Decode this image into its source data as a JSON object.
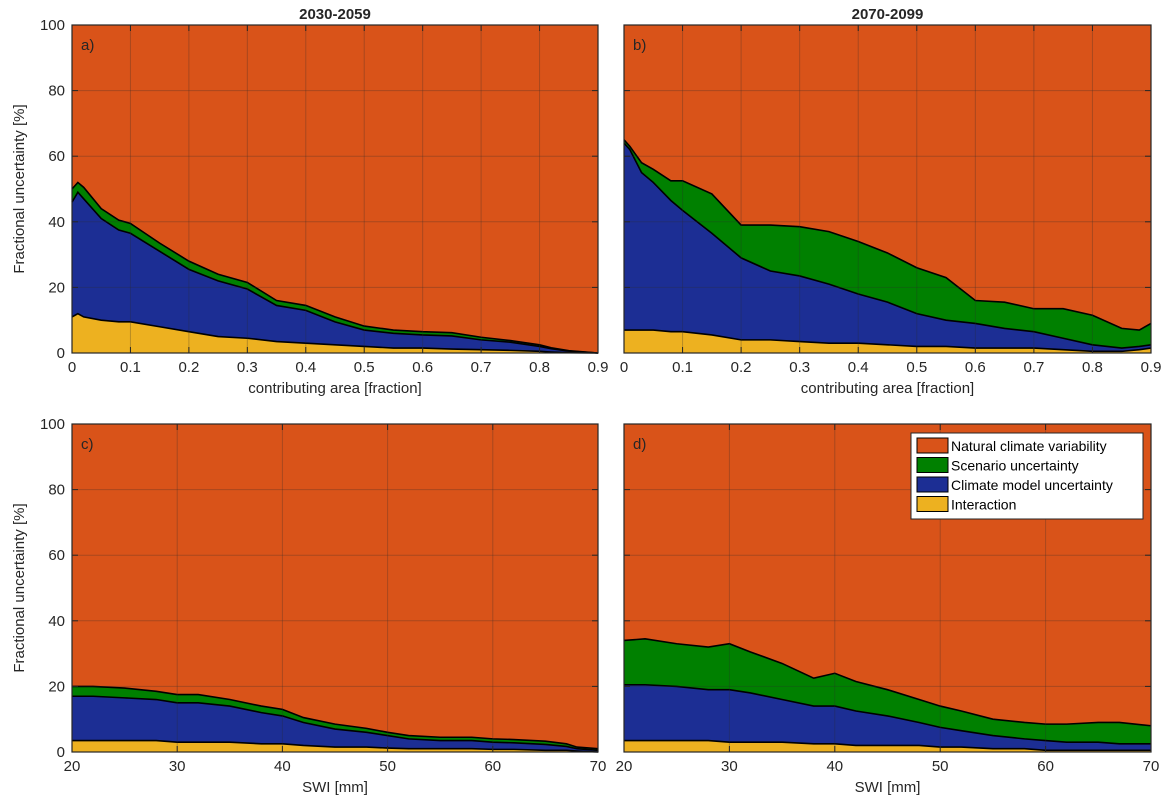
{
  "colors": {
    "natural": "#D95319",
    "scenario": "#008000",
    "model": "#1C2E94",
    "interaction": "#EDB120",
    "grid": "#2a2a2a",
    "axis": "#262626"
  },
  "legend": {
    "placement": "top-right of panel d",
    "items": [
      {
        "label": "Natural climate variability",
        "color": "#D95319"
      },
      {
        "label": "Scenario uncertainty",
        "color": "#008000"
      },
      {
        "label": "Climate model uncertainty",
        "color": "#1C2E94"
      },
      {
        "label": "Interaction",
        "color": "#EDB120"
      }
    ]
  },
  "chart_data": [
    {
      "type": "area",
      "panel": "a)",
      "title": "2030-2059",
      "xlabel": "contributing area [fraction]",
      "ylabel": "Fractional uncertainty [%]",
      "xlim": [
        0,
        0.9
      ],
      "ylim": [
        0,
        100
      ],
      "xticks": [
        "0",
        "0.1",
        "0.2",
        "0.3",
        "0.4",
        "0.5",
        "0.6",
        "0.7",
        "0.8",
        "0.9"
      ],
      "yticks": [
        "0",
        "20",
        "40",
        "60",
        "80",
        "100"
      ],
      "grid": true,
      "x": [
        0,
        0.01,
        0.02,
        0.05,
        0.08,
        0.1,
        0.15,
        0.2,
        0.25,
        0.3,
        0.35,
        0.4,
        0.45,
        0.5,
        0.55,
        0.6,
        0.65,
        0.7,
        0.75,
        0.8,
        0.82,
        0.85,
        0.9
      ],
      "series": [
        {
          "name": "Interaction",
          "values": [
            11,
            12,
            11,
            10,
            9.5,
            9.5,
            8,
            6.5,
            5,
            4.5,
            3.5,
            3,
            2.5,
            2,
            1.5,
            1.5,
            1.2,
            1,
            0.8,
            0.5,
            0.3,
            0.1,
            0
          ]
        },
        {
          "name": "Climate model uncertainty",
          "values": [
            35,
            37,
            36,
            31,
            28,
            27,
            23,
            19,
            17,
            15,
            11,
            10,
            7,
            5,
            4.5,
            4,
            4,
            3,
            2.5,
            1.5,
            1,
            0.5,
            0
          ]
        },
        {
          "name": "Scenario uncertainty",
          "values": [
            4,
            3,
            3.5,
            3,
            3,
            3,
            2.5,
            2.5,
            2,
            2,
            1.5,
            1.5,
            1.5,
            1.2,
            1,
            1,
            1,
            0.8,
            0.5,
            0.5,
            0.3,
            0.1,
            0
          ]
        },
        {
          "name": "Natural climate variability",
          "values": [
            50,
            48,
            49.5,
            56,
            59.5,
            60.5,
            66.5,
            72,
            76,
            78.5,
            84,
            85.5,
            89,
            91.8,
            93,
            93.5,
            93.8,
            95.2,
            96.2,
            97.5,
            98.4,
            99.3,
            100
          ]
        }
      ]
    },
    {
      "type": "area",
      "panel": "b)",
      "title": "2070-2099",
      "xlabel": "contributing area [fraction]",
      "ylabel": "",
      "xlim": [
        0,
        0.9
      ],
      "ylim": [
        0,
        100
      ],
      "xticks": [
        "0",
        "0.1",
        "0.2",
        "0.3",
        "0.4",
        "0.5",
        "0.6",
        "0.7",
        "0.8",
        "0.9"
      ],
      "yticks": [],
      "grid": true,
      "x": [
        0,
        0.01,
        0.03,
        0.05,
        0.08,
        0.1,
        0.15,
        0.2,
        0.25,
        0.3,
        0.35,
        0.4,
        0.45,
        0.5,
        0.55,
        0.6,
        0.65,
        0.7,
        0.75,
        0.8,
        0.85,
        0.88,
        0.9
      ],
      "series": [
        {
          "name": "Interaction",
          "values": [
            7,
            7,
            7,
            7,
            6.5,
            6.5,
            5.5,
            4,
            4,
            3.5,
            3,
            3,
            2.5,
            2,
            2,
            1.5,
            1.5,
            1.5,
            1,
            0.5,
            0.5,
            1,
            1.5
          ]
        },
        {
          "name": "Climate model uncertainty",
          "values": [
            57,
            55,
            48,
            45,
            40,
            37,
            31,
            25,
            21,
            20,
            18,
            15,
            13,
            10,
            8,
            7.5,
            6,
            5,
            3.5,
            2,
            1,
            1,
            1
          ]
        },
        {
          "name": "Scenario uncertainty",
          "values": [
            1,
            1,
            3,
            4,
            6,
            9,
            12,
            10,
            14,
            15,
            16,
            16,
            15,
            14,
            13,
            7,
            8,
            7,
            9,
            9,
            6,
            5,
            6.5
          ]
        },
        {
          "name": "Natural climate variability",
          "values": [
            35,
            37,
            42,
            44,
            47.5,
            47.5,
            51.5,
            61,
            61,
            61.5,
            63,
            66,
            69.5,
            74,
            77,
            84,
            84.5,
            86.5,
            86.5,
            88.5,
            92.5,
            93,
            91
          ]
        }
      ]
    },
    {
      "type": "area",
      "panel": "c)",
      "title": "",
      "xlabel": "SWI [mm]",
      "ylabel": "Fractional uncertainty [%]",
      "xlim": [
        20,
        70
      ],
      "ylim": [
        0,
        100
      ],
      "xticks": [
        "20",
        "30",
        "40",
        "50",
        "60",
        "70"
      ],
      "yticks": [
        "0",
        "20",
        "40",
        "60",
        "80",
        "100"
      ],
      "grid": true,
      "x": [
        20,
        22,
        25,
        28,
        30,
        32,
        35,
        38,
        40,
        42,
        45,
        48,
        50,
        52,
        55,
        58,
        60,
        62,
        65,
        67,
        68,
        70
      ],
      "series": [
        {
          "name": "Interaction",
          "values": [
            3.5,
            3.5,
            3.5,
            3.5,
            3,
            3,
            3,
            2.5,
            2.5,
            2,
            1.5,
            1.5,
            1.2,
            1,
            1,
            1,
            0.8,
            0.8,
            0.5,
            0.5,
            0.3,
            0
          ]
        },
        {
          "name": "Climate model uncertainty",
          "values": [
            13.5,
            13.5,
            13,
            12.5,
            12,
            12,
            11,
            9.5,
            8.5,
            7,
            5.5,
            4.5,
            3.8,
            3,
            2.5,
            2.5,
            2.2,
            2,
            1.8,
            1.2,
            0.7,
            0.5
          ]
        },
        {
          "name": "Scenario uncertainty",
          "values": [
            3,
            3,
            3,
            2.5,
            2.5,
            2.5,
            2,
            2,
            2,
            1.5,
            1.5,
            1.2,
            1,
            1,
            1,
            1,
            1,
            1,
            1,
            0.8,
            0.5,
            0.5
          ]
        },
        {
          "name": "Natural climate variability",
          "values": [
            80,
            80,
            80.5,
            81.5,
            82.5,
            82.5,
            84,
            86,
            87,
            89.5,
            91.5,
            92.8,
            94,
            95,
            95.5,
            95.5,
            96,
            96.2,
            96.7,
            97.5,
            98.5,
            99
          ]
        }
      ]
    },
    {
      "type": "area",
      "panel": "d)",
      "title": "",
      "xlabel": "SWI [mm]",
      "ylabel": "",
      "xlim": [
        20,
        70
      ],
      "ylim": [
        0,
        100
      ],
      "xticks": [
        "20",
        "30",
        "40",
        "50",
        "60",
        "70"
      ],
      "yticks": [],
      "grid": true,
      "x": [
        20,
        22,
        25,
        28,
        30,
        32,
        35,
        38,
        40,
        42,
        45,
        48,
        50,
        52,
        55,
        58,
        60,
        62,
        65,
        67,
        70
      ],
      "series": [
        {
          "name": "Interaction",
          "values": [
            3.5,
            3.5,
            3.5,
            3.5,
            3,
            3,
            3,
            2.5,
            2.5,
            2,
            2,
            2,
            1.5,
            1.5,
            1,
            1,
            0.5,
            0.5,
            0.5,
            0.5,
            0.5
          ]
        },
        {
          "name": "Climate model uncertainty",
          "values": [
            17,
            17,
            16.5,
            15.5,
            16,
            15,
            13,
            11.5,
            11.5,
            10.5,
            9,
            7,
            6,
            5,
            4,
            3,
            3,
            2.5,
            2.5,
            2,
            2
          ]
        },
        {
          "name": "Scenario uncertainty",
          "values": [
            13.5,
            14,
            13,
            13,
            14,
            12.5,
            11,
            8.5,
            10,
            9,
            8,
            7,
            6.5,
            6,
            5,
            5,
            5,
            5.5,
            6,
            6.5,
            5.5
          ]
        },
        {
          "name": "Natural climate variability",
          "values": [
            66,
            65.5,
            67,
            68,
            67,
            69.5,
            73,
            77.5,
            76,
            78.5,
            81,
            84,
            86,
            87.5,
            90,
            91,
            91.5,
            91.5,
            91,
            91,
            92
          ]
        }
      ]
    }
  ]
}
